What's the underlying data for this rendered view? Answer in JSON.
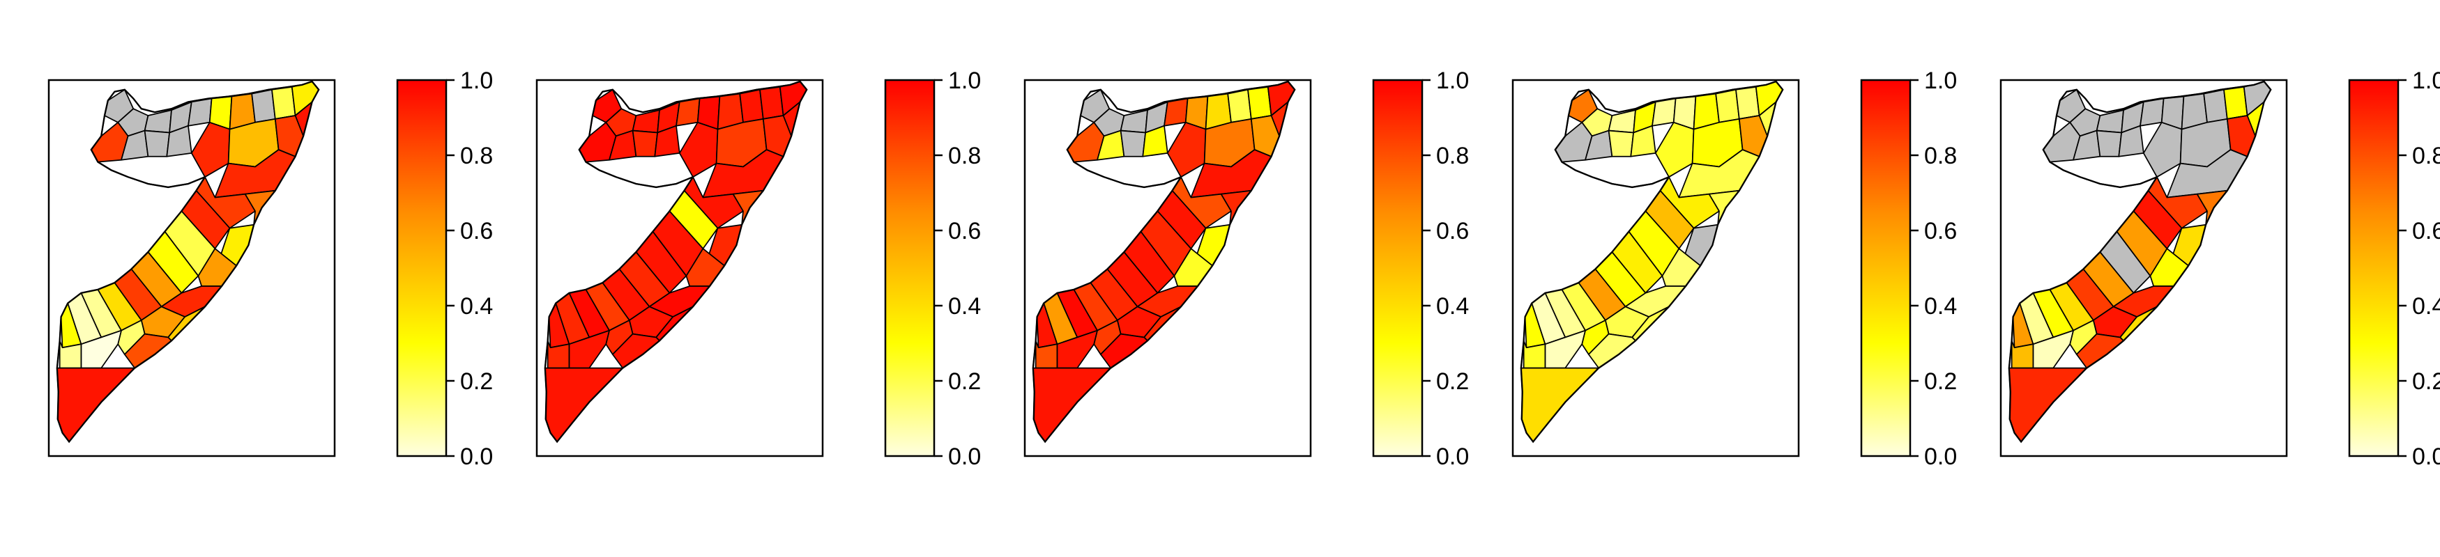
{
  "figure": {
    "panel_count": 5,
    "colorbar": {
      "ticks": [
        "0.0",
        "0.2",
        "0.4",
        "0.6",
        "0.8",
        "1.0"
      ],
      "range": [
        0,
        1
      ],
      "gradient_stops": [
        "#ffffe0",
        "#ffff00",
        "#ff8c00",
        "#ff0000"
      ]
    },
    "missing_color": "#bebebe",
    "panels": [
      {
        "id": "panel-1",
        "somaliland": [
          "na",
          "na",
          "na",
          "na",
          "na",
          0.85,
          "na",
          "na",
          "na",
          0.3,
          0.6,
          "na",
          0.2,
          0.35,
          0.95
        ],
        "puntland": [
          0.9,
          0.5,
          0.85,
          0.9
        ],
        "central": [
          0.85,
          0.7,
          0.9,
          0.35,
          0.2,
          0.6,
          0.3
        ],
        "south": [
          0.6,
          0.85,
          0.4,
          0.1,
          0.05,
          0.3,
          0.9,
          0.6,
          0.15,
          0.0,
          0.45,
          0.8,
          0.1,
          0.95
        ]
      },
      {
        "id": "panel-2",
        "somaliland": [
          0.98,
          0.9,
          0.95,
          0.95,
          0.85,
          0.98,
          0.95,
          0.9,
          0.95,
          0.98,
          0.9,
          0.95,
          0.95,
          0.98,
          0.95
        ],
        "puntland": [
          0.95,
          0.85,
          0.9,
          0.95
        ],
        "central": [
          0.95,
          0.8,
          0.3,
          0.9,
          0.95,
          0.85,
          0.95
        ],
        "south": [
          0.9,
          0.95,
          0.85,
          0.98,
          0.9,
          0.95,
          0.98,
          0.95,
          0.9,
          0.95,
          0.98,
          0.95,
          0.9,
          0.95
        ]
      },
      {
        "id": "panel-3",
        "somaliland": [
          "na",
          "na",
          "na",
          "na",
          0.85,
          0.8,
          0.25,
          "na",
          0.3,
          0.6,
          0.4,
          0.2,
          0.3,
          0.95,
          0.9
        ],
        "puntland": [
          0.9,
          0.7,
          0.6,
          0.95
        ],
        "central": [
          0.8,
          0.9,
          0.95,
          0.3,
          0.9,
          0.25,
          0.95
        ],
        "south": [
          0.95,
          0.9,
          0.85,
          0.98,
          0.6,
          0.95,
          0.9,
          0.95,
          0.85,
          0.95,
          0.9,
          0.98,
          0.8,
          0.95
        ]
      },
      {
        "id": "panel-4",
        "somaliland": [
          0.7,
          0.15,
          0.1,
          0.3,
          0.1,
          "na",
          "na",
          0.15,
          0.2,
          0.1,
          0.3,
          0.2,
          0.15,
          0.3,
          0.2
        ],
        "puntland": [
          0.25,
          0.3,
          0.6,
          0.2
        ],
        "central": [
          0.35,
          0.2,
          0.5,
          "na",
          0.3,
          0.15,
          0.35
        ],
        "south": [
          0.3,
          0.6,
          0.2,
          0.1,
          0.05,
          0.3,
          0.15,
          0.2,
          0.3,
          0.05,
          0.2,
          0.15,
          0.25,
          0.4
        ]
      },
      {
        "id": "panel-5",
        "somaliland": [
          "na",
          "na",
          "na",
          "na",
          "na",
          "na",
          "na",
          "na",
          "na",
          "na",
          "na",
          "na",
          0.3,
          "na",
          0.3
        ],
        "puntland": [
          "na",
          "na",
          0.9,
          "na"
        ],
        "central": [
          0.85,
          0.7,
          0.95,
          0.4,
          0.6,
          0.3,
          "na"
        ],
        "south": [
          0.6,
          0.85,
          0.4,
          0.3,
          0.1,
          0.6,
          0.9,
          0.95,
          0.2,
          0.05,
          0.4,
          0.85,
          0.5,
          0.9
        ]
      }
    ]
  }
}
